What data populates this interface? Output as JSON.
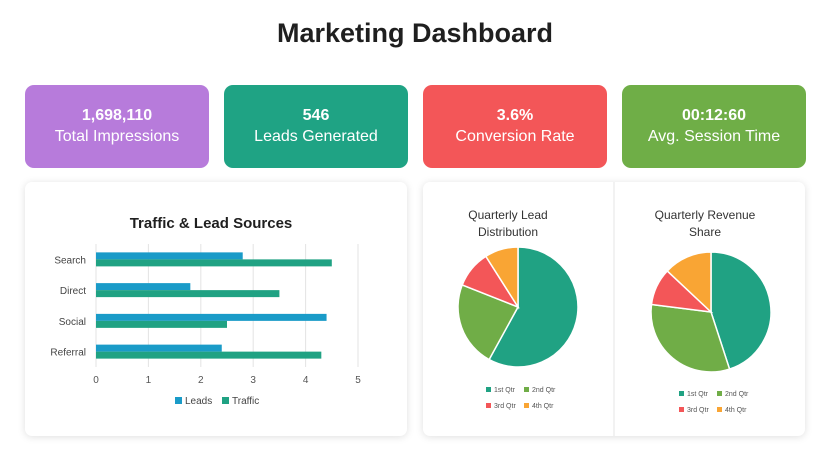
{
  "page_title": "Marketing Dashboard",
  "kpis": [
    {
      "value": "1,698,110",
      "label": "Total Impressions",
      "color": "#B77BDB"
    },
    {
      "value": "546",
      "label": "Leads Generated",
      "color": "#1FA384"
    },
    {
      "value": "3.6%",
      "label": "Conversion Rate",
      "color": "#F35658"
    },
    {
      "value": "00:12:60",
      "label": "Avg. Session Time",
      "color": "#6FAE47"
    }
  ],
  "colors": {
    "leads": "#1A9BC8",
    "traffic": "#20A283",
    "q1": "#20A283",
    "q2": "#70AD47",
    "q3": "#F35658",
    "q4": "#F9A534"
  },
  "chart_data": [
    {
      "type": "bar",
      "orientation": "horizontal",
      "title": "Traffic & Lead Sources",
      "categories": [
        "Search",
        "Direct",
        "Social",
        "Referral"
      ],
      "series": [
        {
          "name": "Leads",
          "values": [
            2.8,
            1.8,
            4.4,
            2.4
          ]
        },
        {
          "name": "Traffic",
          "values": [
            4.5,
            3.5,
            2.5,
            4.3
          ]
        }
      ],
      "xlim": [
        0,
        5
      ],
      "xticks": [
        "0",
        "1",
        "2",
        "3",
        "4",
        "5"
      ],
      "grid": true,
      "legend": "bottom"
    },
    {
      "type": "pie",
      "title": [
        "Quarterly Lead",
        "Distribution"
      ],
      "categories": [
        "1st Qtr",
        "2nd Qtr",
        "3rd Qtr",
        "4th Qtr"
      ],
      "values": [
        58,
        23,
        10,
        9
      ],
      "legend": "bottom"
    },
    {
      "type": "pie",
      "title": [
        "Quarterly Revenue",
        "Share"
      ],
      "categories": [
        "1st Qtr",
        "2nd Qtr",
        "3rd Qtr",
        "4th Qtr"
      ],
      "values": [
        45,
        32,
        10,
        13
      ],
      "legend": "bottom"
    }
  ]
}
